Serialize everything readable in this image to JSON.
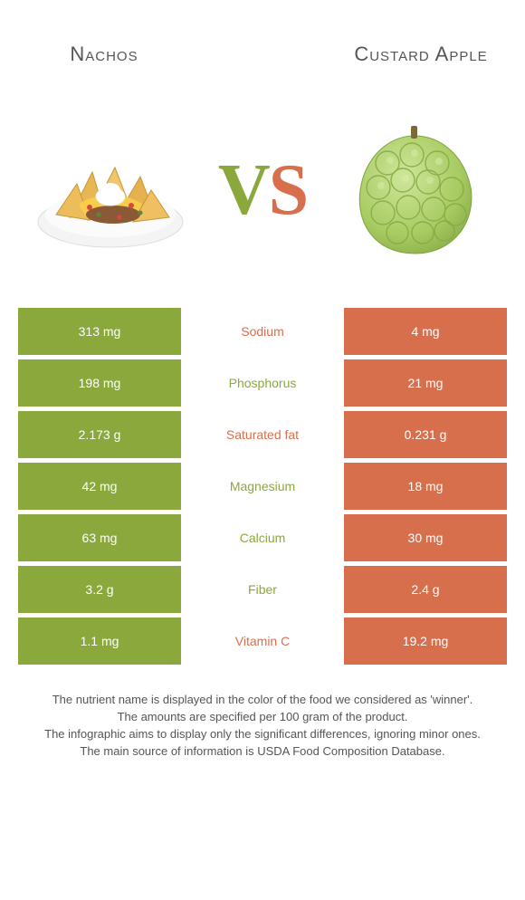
{
  "colors": {
    "green": "#8aa83c",
    "orange": "#d86f4c",
    "bg": "#ffffff",
    "text": "#555555"
  },
  "foods": {
    "left": {
      "name": "Nachos"
    },
    "right": {
      "name": "Custard Apple"
    }
  },
  "vs": {
    "v": "V",
    "s": "S"
  },
  "nutrients": [
    {
      "name": "Sodium",
      "left": "313 mg",
      "right": "4 mg",
      "winner": "orange"
    },
    {
      "name": "Phosphorus",
      "left": "198 mg",
      "right": "21 mg",
      "winner": "green"
    },
    {
      "name": "Saturated fat",
      "left": "2.173 g",
      "right": "0.231 g",
      "winner": "orange"
    },
    {
      "name": "Magnesium",
      "left": "42 mg",
      "right": "18 mg",
      "winner": "green"
    },
    {
      "name": "Calcium",
      "left": "63 mg",
      "right": "30 mg",
      "winner": "green"
    },
    {
      "name": "Fiber",
      "left": "3.2 g",
      "right": "2.4 g",
      "winner": "green"
    },
    {
      "name": "Vitamin C",
      "left": "1.1 mg",
      "right": "19.2 mg",
      "winner": "orange"
    }
  ],
  "notes": [
    "The nutrient name is displayed in the color of the food we considered as 'winner'.",
    "The amounts are specified per 100 gram of the product.",
    "The infographic aims to display only the significant differences, ignoring minor ones.",
    "The main source of information is USDA Food Composition Database."
  ]
}
